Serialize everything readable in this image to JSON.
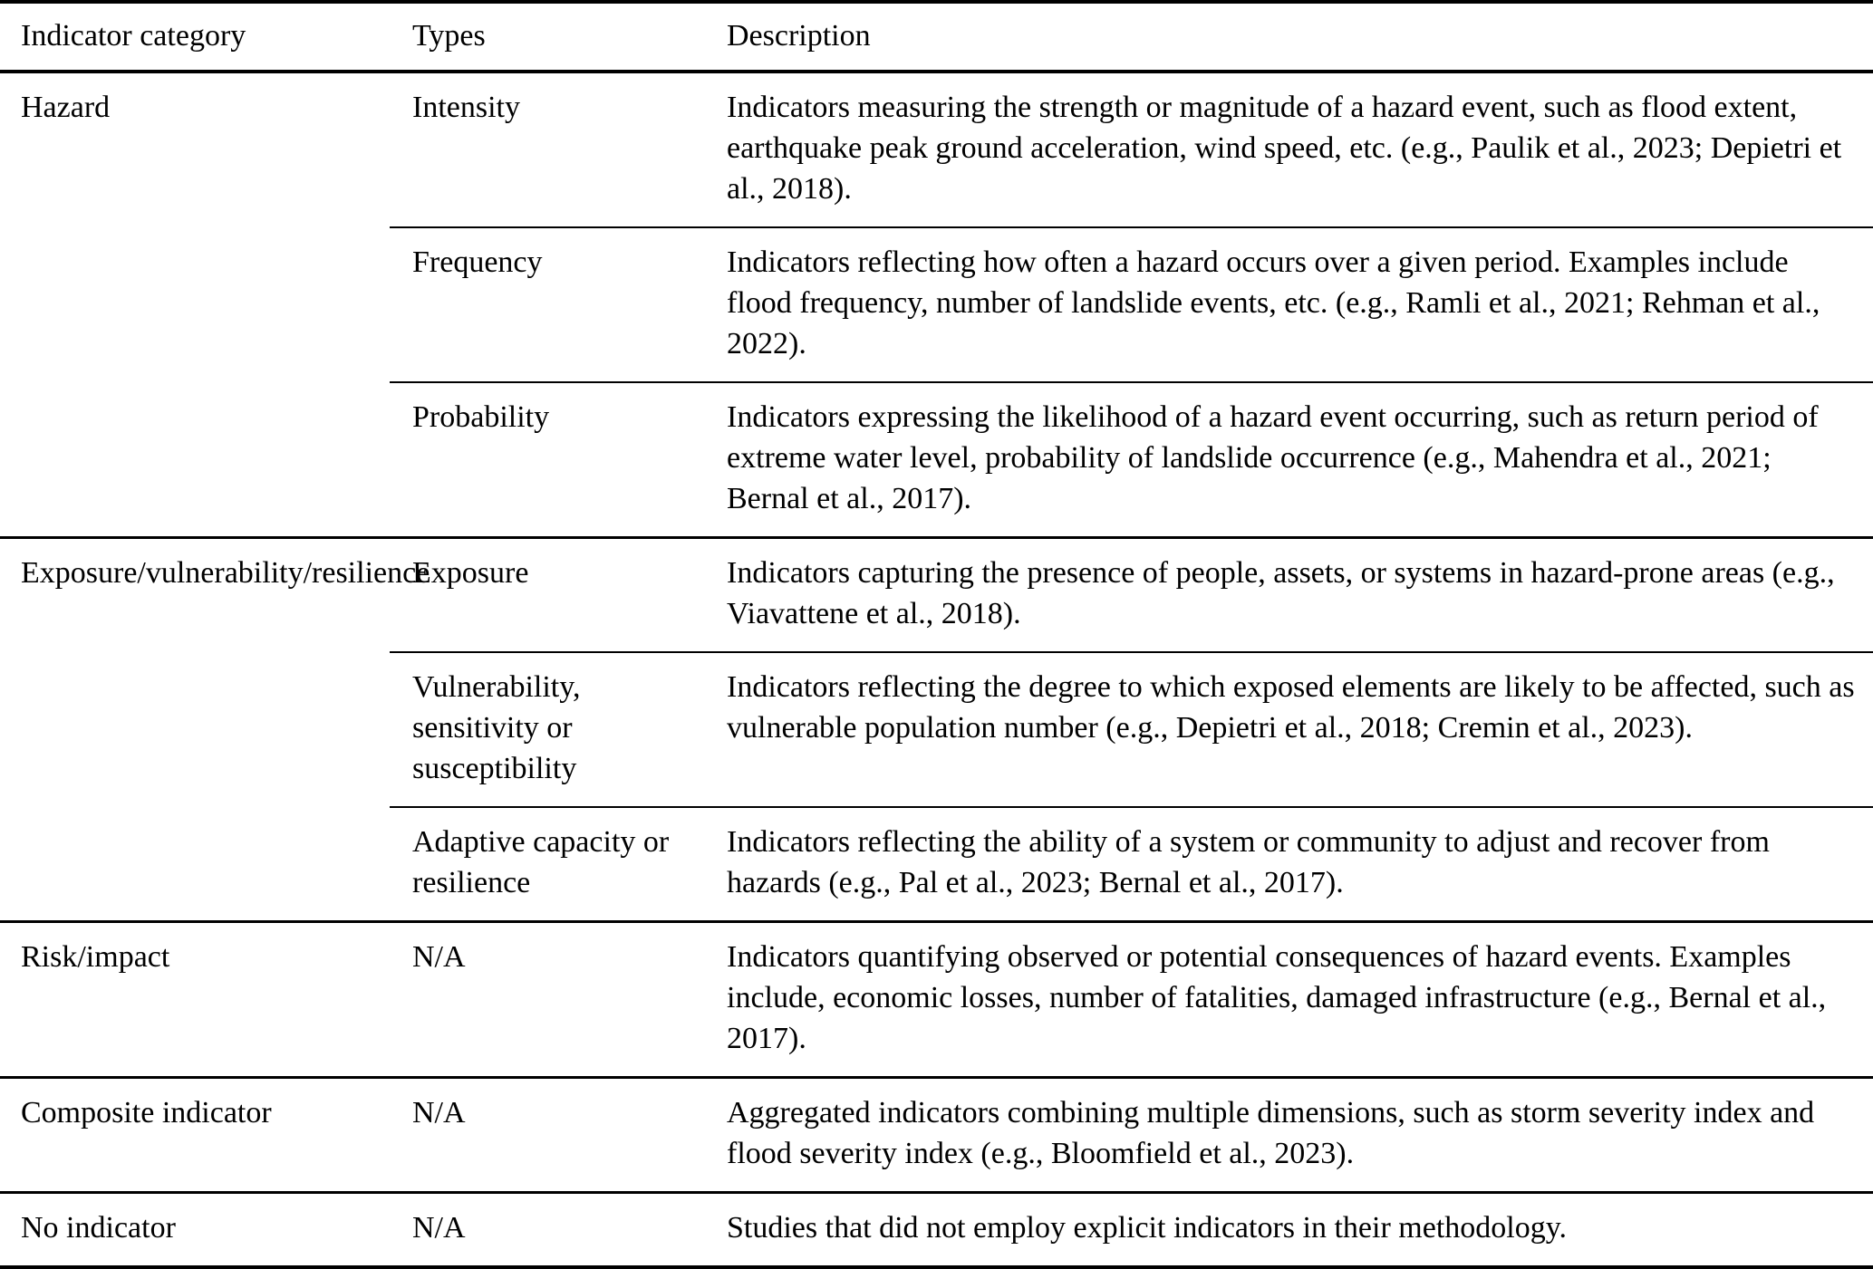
{
  "table": {
    "columns": [
      "Indicator category",
      "Types",
      "Description"
    ],
    "sections": [
      {
        "category": "Hazard",
        "rows": [
          {
            "type": "Intensity",
            "description": "Indicators measuring the strength or magnitude of a hazard event, such as flood extent, earthquake peak ground acceleration, wind speed, etc. (e.g., Paulik et al., 2023; Depietri et al., 2018)."
          },
          {
            "type": "Frequency",
            "description": "Indicators reflecting how often a hazard occurs over a given period. Examples include flood frequency, number of landslide events, etc. (e.g., Ramli et al., 2021; Rehman et al., 2022)."
          },
          {
            "type": "Probability",
            "description": "Indicators expressing the likelihood of a hazard event occurring, such as return period of extreme water level, probability of landslide occurrence (e.g., Mahendra et al., 2021; Bernal et al., 2017)."
          }
        ]
      },
      {
        "category": "Exposure/vulnerability/resilience",
        "rows": [
          {
            "type": "Exposure",
            "description": "Indicators capturing the presence of people, assets, or systems in hazard-prone areas (e.g., Viavattene et al., 2018)."
          },
          {
            "type": "Vulnerability, sensitivity or susceptibility",
            "description": "Indicators reflecting the degree to which exposed elements are likely to be affected, such as vulnerable population number (e.g., Depietri et al., 2018; Cremin et al., 2023)."
          },
          {
            "type": "Adaptive capacity or resilience",
            "description": "Indicators reflecting the ability of a system or community to adjust and recover from hazards (e.g., Pal et al., 2023; Bernal et al., 2017)."
          }
        ]
      },
      {
        "category": "Risk/impact",
        "rows": [
          {
            "type": "N/A",
            "description": "Indicators quantifying observed or potential consequences of hazard events. Examples include, economic losses, number of fatalities, damaged infrastructure (e.g., Bernal et al., 2017)."
          }
        ]
      },
      {
        "category": "Composite indicator",
        "rows": [
          {
            "type": "N/A",
            "description": "Aggregated indicators combining multiple dimensions, such as storm severity index and flood severity index (e.g., Bloomfield et al., 2023)."
          }
        ]
      },
      {
        "category": "No indicator",
        "rows": [
          {
            "type": "N/A",
            "description": "Studies that did not employ explicit indicators in their methodology."
          }
        ]
      }
    ]
  }
}
